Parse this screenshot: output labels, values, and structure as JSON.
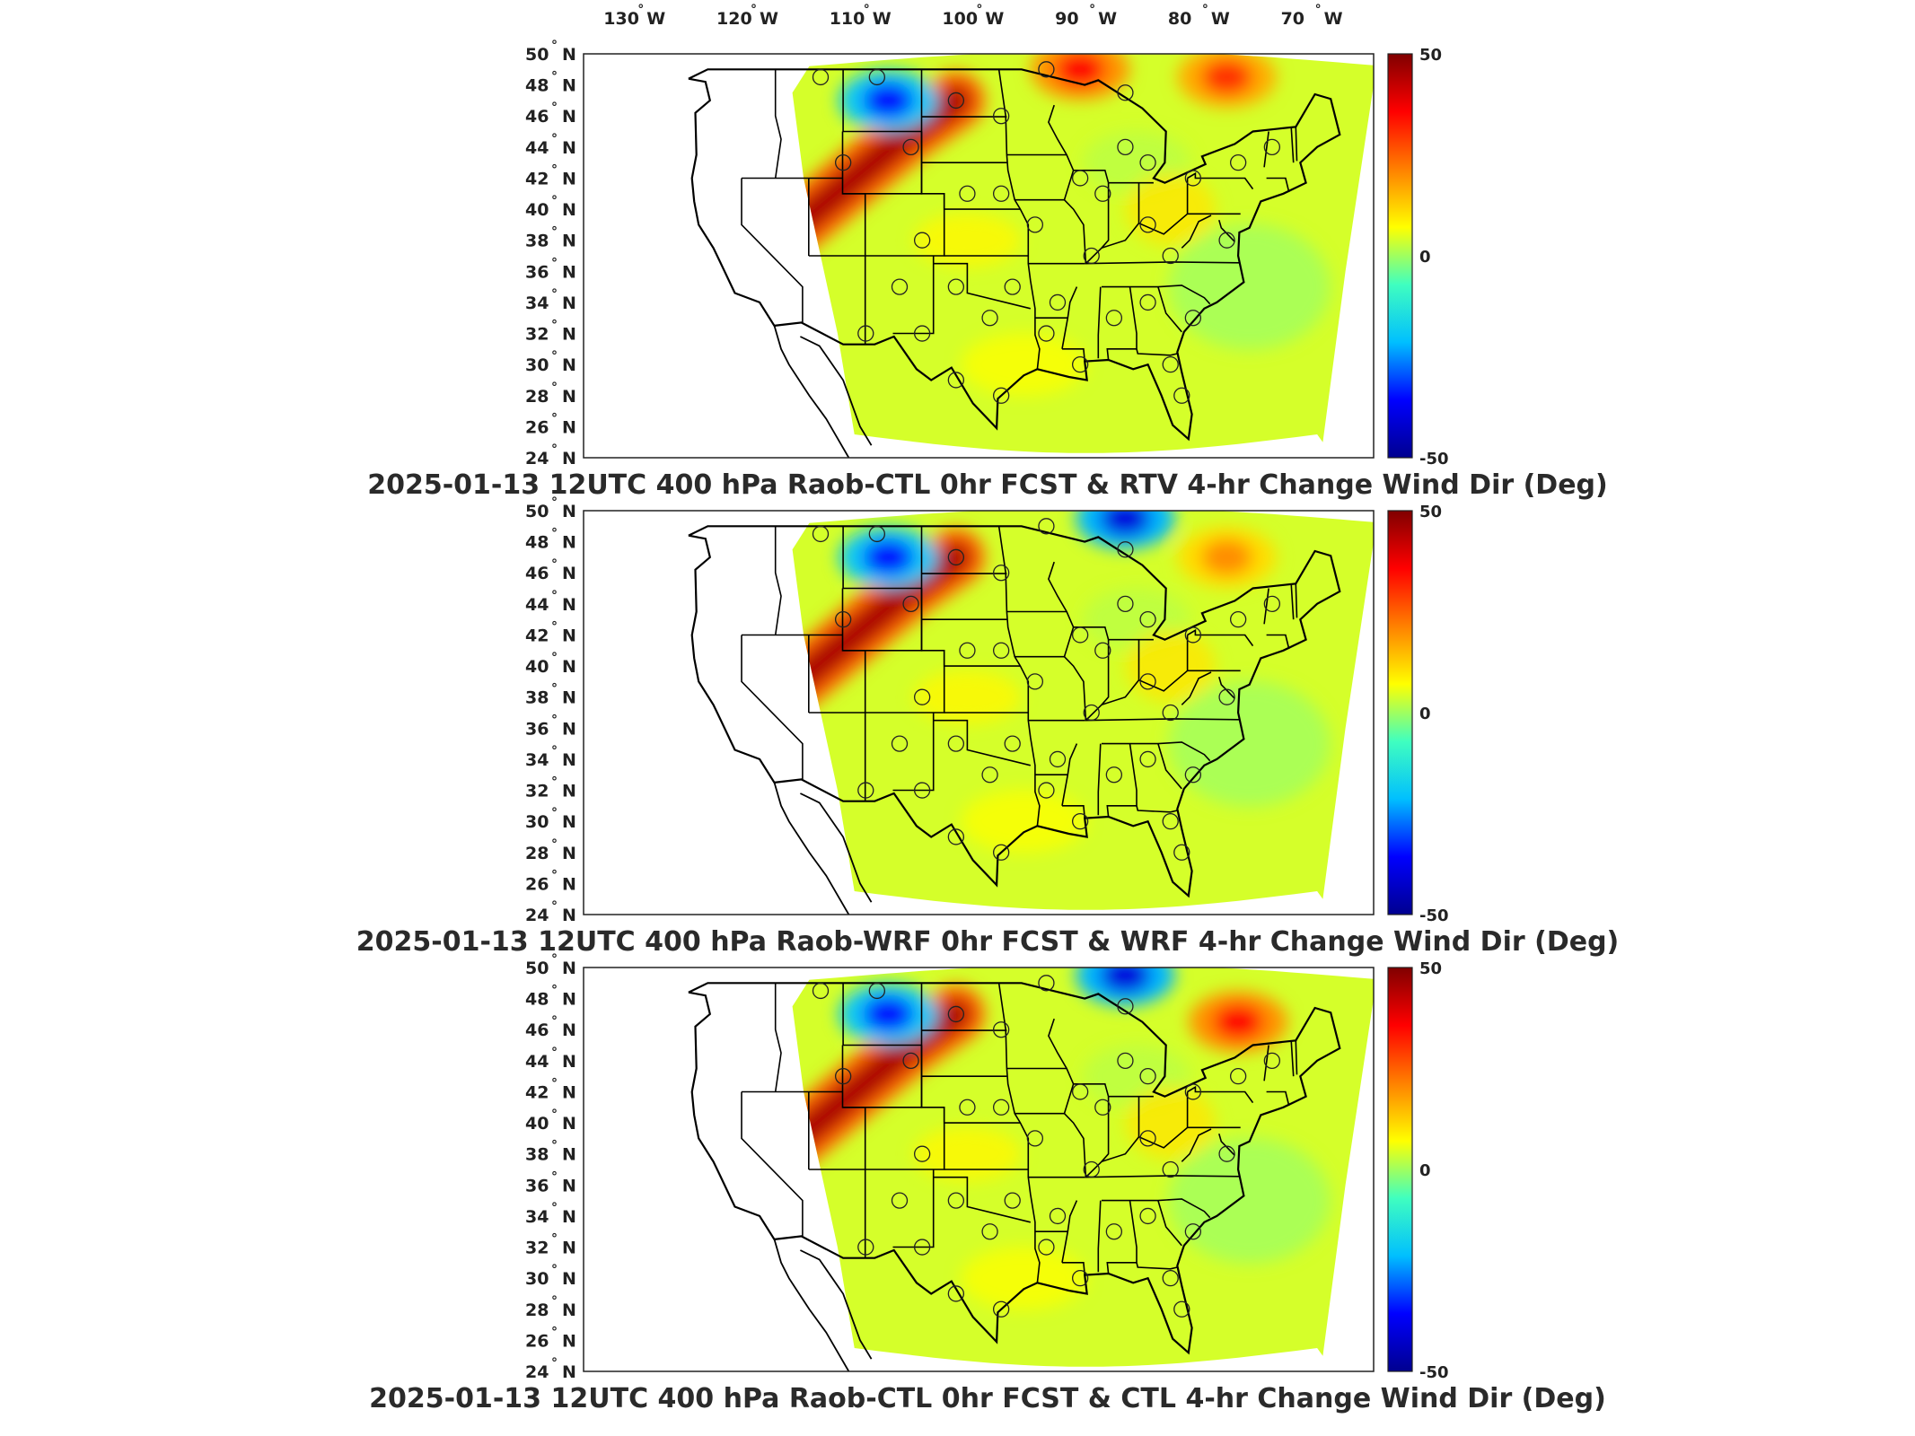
{
  "lon_ticks": [
    "130",
    "120",
    "110",
    "100",
    "90",
    "80",
    "70"
  ],
  "lon_hemisphere": "W",
  "lat_ticks": [
    "50",
    "48",
    "46",
    "44",
    "42",
    "40",
    "38",
    "36",
    "34",
    "32",
    "30",
    "28",
    "26",
    "24"
  ],
  "lat_hemisphere": "N",
  "degree_symbol": "°",
  "colorbar": {
    "max_label": "50",
    "mid_label": "0",
    "min_label": "-50",
    "colors": [
      "#00008f",
      "#0000ff",
      "#00bfff",
      "#40ffbf",
      "#ffff00",
      "#ff8000",
      "#ff0000",
      "#800000"
    ]
  },
  "chart_data": [
    {
      "type": "heatmap",
      "title": "2025-01-13 12UTC 400 hPa Raob-CTL 0hr FCST & RTV 4-hr Change Wind Dir (Deg)",
      "xlim": [
        -134,
        -64
      ],
      "ylim": [
        24,
        50
      ],
      "clim": [
        -50,
        50
      ],
      "grid": false,
      "colorbar_position": "right",
      "features": [
        {
          "name": "positive band (red)",
          "path_lonlat": [
            [
              -115,
              39
            ],
            [
              -110,
              42
            ],
            [
              -105,
              45
            ],
            [
              -101,
              47
            ]
          ],
          "value": 45
        },
        {
          "name": "negative area (blue)",
          "center_lonlat": [
            -107,
            47
          ],
          "value": -35
        },
        {
          "name": "positive area NE",
          "center_lonlat": [
            -77,
            48.5
          ],
          "value": 30
        },
        {
          "name": "positive area Great Lakes",
          "center_lonlat": [
            -90,
            49
          ],
          "value": 35
        }
      ],
      "stations_lonlat": [
        [
          -113,
          48.5
        ],
        [
          -108,
          48.5
        ],
        [
          -101,
          47
        ],
        [
          -97,
          46
        ],
        [
          -111,
          43
        ],
        [
          -105,
          44
        ],
        [
          -100,
          41
        ],
        [
          -97,
          41
        ],
        [
          -104,
          38
        ],
        [
          -94,
          39
        ],
        [
          -90,
          42
        ],
        [
          -88,
          41
        ],
        [
          -86,
          44
        ],
        [
          -84,
          43
        ],
        [
          -80,
          42
        ],
        [
          -76,
          43
        ],
        [
          -73,
          44
        ],
        [
          -84,
          39
        ],
        [
          -82,
          37
        ],
        [
          -77,
          38
        ],
        [
          -89,
          37
        ],
        [
          -92,
          34
        ],
        [
          -96,
          35
        ],
        [
          -101,
          35
        ],
        [
          -106,
          35
        ],
        [
          -109,
          32
        ],
        [
          -104,
          32
        ],
        [
          -98,
          33
        ],
        [
          -93,
          32
        ],
        [
          -87,
          33
        ],
        [
          -84,
          34
        ],
        [
          -80,
          33
        ],
        [
          -82,
          30
        ],
        [
          -90,
          30
        ],
        [
          -97,
          28
        ],
        [
          -101,
          29
        ],
        [
          -81,
          28
        ],
        [
          -86,
          47.5
        ],
        [
          -93,
          49
        ]
      ]
    },
    {
      "type": "heatmap",
      "title": "2025-01-13 12UTC 400 hPa Raob-WRF 0hr FCST & WRF 4-hr Change Wind Dir (Deg)",
      "xlim": [
        -134,
        -64
      ],
      "ylim": [
        24,
        50
      ],
      "clim": [
        -50,
        50
      ],
      "grid": false,
      "colorbar_position": "right",
      "features": [
        {
          "name": "positive band (red)",
          "path_lonlat": [
            [
              -115,
              39
            ],
            [
              -110,
              42
            ],
            [
              -105,
              45
            ],
            [
              -101,
              47
            ]
          ],
          "value": 45
        },
        {
          "name": "negative area (blue)",
          "center_lonlat": [
            -107,
            47
          ],
          "value": -35
        },
        {
          "name": "negative area N Great Lakes",
          "center_lonlat": [
            -86,
            49.5
          ],
          "value": -40
        },
        {
          "name": "positive area NE",
          "center_lonlat": [
            -77,
            47
          ],
          "value": 20
        }
      ],
      "stations_lonlat": [
        [
          -113,
          48.5
        ],
        [
          -108,
          48.5
        ],
        [
          -101,
          47
        ],
        [
          -97,
          46
        ],
        [
          -111,
          43
        ],
        [
          -105,
          44
        ],
        [
          -100,
          41
        ],
        [
          -97,
          41
        ],
        [
          -104,
          38
        ],
        [
          -94,
          39
        ],
        [
          -90,
          42
        ],
        [
          -88,
          41
        ],
        [
          -86,
          44
        ],
        [
          -84,
          43
        ],
        [
          -80,
          42
        ],
        [
          -76,
          43
        ],
        [
          -73,
          44
        ],
        [
          -84,
          39
        ],
        [
          -82,
          37
        ],
        [
          -77,
          38
        ],
        [
          -89,
          37
        ],
        [
          -92,
          34
        ],
        [
          -96,
          35
        ],
        [
          -101,
          35
        ],
        [
          -106,
          35
        ],
        [
          -109,
          32
        ],
        [
          -104,
          32
        ],
        [
          -98,
          33
        ],
        [
          -93,
          32
        ],
        [
          -87,
          33
        ],
        [
          -84,
          34
        ],
        [
          -80,
          33
        ],
        [
          -82,
          30
        ],
        [
          -90,
          30
        ],
        [
          -97,
          28
        ],
        [
          -101,
          29
        ],
        [
          -81,
          28
        ],
        [
          -86,
          47.5
        ],
        [
          -93,
          49
        ]
      ]
    },
    {
      "type": "heatmap",
      "title": "2025-01-13 12UTC 400 hPa Raob-CTL 0hr FCST & CTL 4-hr Change Wind Dir (Deg)",
      "xlim": [
        -134,
        -64
      ],
      "ylim": [
        24,
        50
      ],
      "clim": [
        -50,
        50
      ],
      "grid": false,
      "colorbar_position": "right",
      "features": [
        {
          "name": "positive band (red)",
          "path_lonlat": [
            [
              -115,
              39
            ],
            [
              -110,
              42
            ],
            [
              -105,
              45
            ],
            [
              -101,
              47
            ]
          ],
          "value": 45
        },
        {
          "name": "negative area (blue)",
          "center_lonlat": [
            -107,
            47
          ],
          "value": -35
        },
        {
          "name": "negative area N Great Lakes",
          "center_lonlat": [
            -86,
            49.5
          ],
          "value": -40
        },
        {
          "name": "positive area NE",
          "center_lonlat": [
            -76,
            46.5
          ],
          "value": 35
        }
      ],
      "stations_lonlat": [
        [
          -113,
          48.5
        ],
        [
          -108,
          48.5
        ],
        [
          -101,
          47
        ],
        [
          -97,
          46
        ],
        [
          -111,
          43
        ],
        [
          -105,
          44
        ],
        [
          -100,
          41
        ],
        [
          -97,
          41
        ],
        [
          -104,
          38
        ],
        [
          -94,
          39
        ],
        [
          -90,
          42
        ],
        [
          -88,
          41
        ],
        [
          -86,
          44
        ],
        [
          -84,
          43
        ],
        [
          -80,
          42
        ],
        [
          -76,
          43
        ],
        [
          -73,
          44
        ],
        [
          -84,
          39
        ],
        [
          -82,
          37
        ],
        [
          -77,
          38
        ],
        [
          -89,
          37
        ],
        [
          -92,
          34
        ],
        [
          -96,
          35
        ],
        [
          -101,
          35
        ],
        [
          -106,
          35
        ],
        [
          -109,
          32
        ],
        [
          -104,
          32
        ],
        [
          -98,
          33
        ],
        [
          -93,
          32
        ],
        [
          -87,
          33
        ],
        [
          -84,
          34
        ],
        [
          -80,
          33
        ],
        [
          -82,
          30
        ],
        [
          -90,
          30
        ],
        [
          -97,
          28
        ],
        [
          -101,
          29
        ],
        [
          -81,
          28
        ],
        [
          -86,
          47.5
        ],
        [
          -93,
          49
        ]
      ]
    }
  ]
}
